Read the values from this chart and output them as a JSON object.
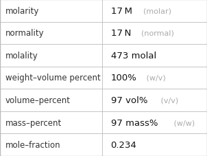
{
  "rows": [
    {
      "label": "molarity",
      "value_main": "17 M",
      "value_annotation": "  (molar)"
    },
    {
      "label": "normality",
      "value_main": "17 N",
      "value_annotation": "  (normal)"
    },
    {
      "label": "molality",
      "value_main": "473 molal",
      "value_annotation": ""
    },
    {
      "label": "weight–volume percent",
      "value_main": "100%",
      "value_annotation": " (w/v)"
    },
    {
      "label": "volume–percent",
      "value_main": "97 vol%",
      "value_annotation": " (v/v)"
    },
    {
      "label": "mass–percent",
      "value_main": "97 mass%",
      "value_annotation": " (w/w)"
    },
    {
      "label": "mole–fraction",
      "value_main": "0.234",
      "value_annotation": ""
    }
  ],
  "bg_color": "#ffffff",
  "border_color": "#bbbbbb",
  "label_color": "#333333",
  "value_main_color": "#111111",
  "value_annotation_color": "#aaaaaa",
  "label_fontsize": 8.5,
  "value_main_fontsize": 9.5,
  "value_annotation_fontsize": 8.0,
  "col_split": 0.495,
  "fig_width": 3.02,
  "fig_height": 2.28,
  "dpi": 100
}
